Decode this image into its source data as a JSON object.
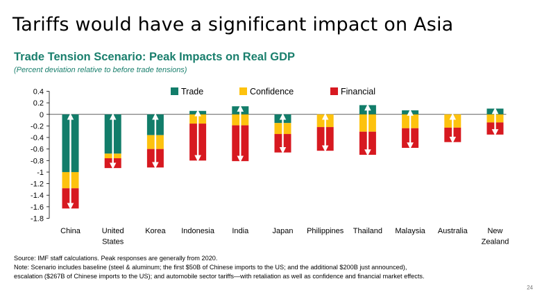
{
  "slide": {
    "title": "Tariffs would have a significant impact on Asia",
    "page_number": "24"
  },
  "chart_data": {
    "type": "bar",
    "stacked": true,
    "title": "Trade Tension Scenario: Peak Impacts on Real GDP",
    "subtitle": "(Percent deviation relative to before trade tensions)",
    "xlabel": "",
    "ylabel": "",
    "ylim": [
      -1.8,
      0.4
    ],
    "yticks": [
      0.4,
      0.2,
      0,
      -0.2,
      -0.4,
      -0.6,
      -0.8,
      -1,
      -1.2,
      -1.4,
      -1.6,
      -1.8
    ],
    "grid": false,
    "legend_position": "top",
    "categories": [
      [
        "China"
      ],
      [
        "United",
        "States"
      ],
      [
        "Korea"
      ],
      [
        "Indonesia"
      ],
      [
        "India"
      ],
      [
        "Japan"
      ],
      [
        "Philippines"
      ],
      [
        "Thailand"
      ],
      [
        "Malaysia"
      ],
      [
        "Australia"
      ],
      [
        "New",
        "Zealand"
      ]
    ],
    "series": [
      {
        "name": "Trade",
        "color": "#127d6a",
        "values": [
          -1.0,
          -0.68,
          -0.36,
          0.06,
          0.14,
          -0.15,
          0.0,
          0.16,
          0.07,
          0.0,
          0.1
        ]
      },
      {
        "name": "Confidence",
        "color": "#fdc20e",
        "values": [
          -0.28,
          -0.08,
          -0.24,
          -0.16,
          -0.19,
          -0.19,
          -0.22,
          -0.3,
          -0.24,
          -0.23,
          -0.14
        ]
      },
      {
        "name": "Financial",
        "color": "#d71920",
        "values": [
          -0.35,
          -0.17,
          -0.32,
          -0.64,
          -0.62,
          -0.32,
          -0.41,
          -0.4,
          -0.34,
          -0.25,
          -0.21
        ]
      }
    ],
    "total_range_arrows": true
  },
  "notes": {
    "source": "Source: IMF staff calculations. Peak responses are generally from 2020.",
    "note_line1": "Note: Scenario includes baseline (steel & aluminum; the first $50B of Chinese imports to the US; and the additional $200B just announced),",
    "note_line2": "escalation ($267B of Chinese imports to the US); and automobile sector tariffs—with retaliation as well as confidence and financial market effects."
  }
}
